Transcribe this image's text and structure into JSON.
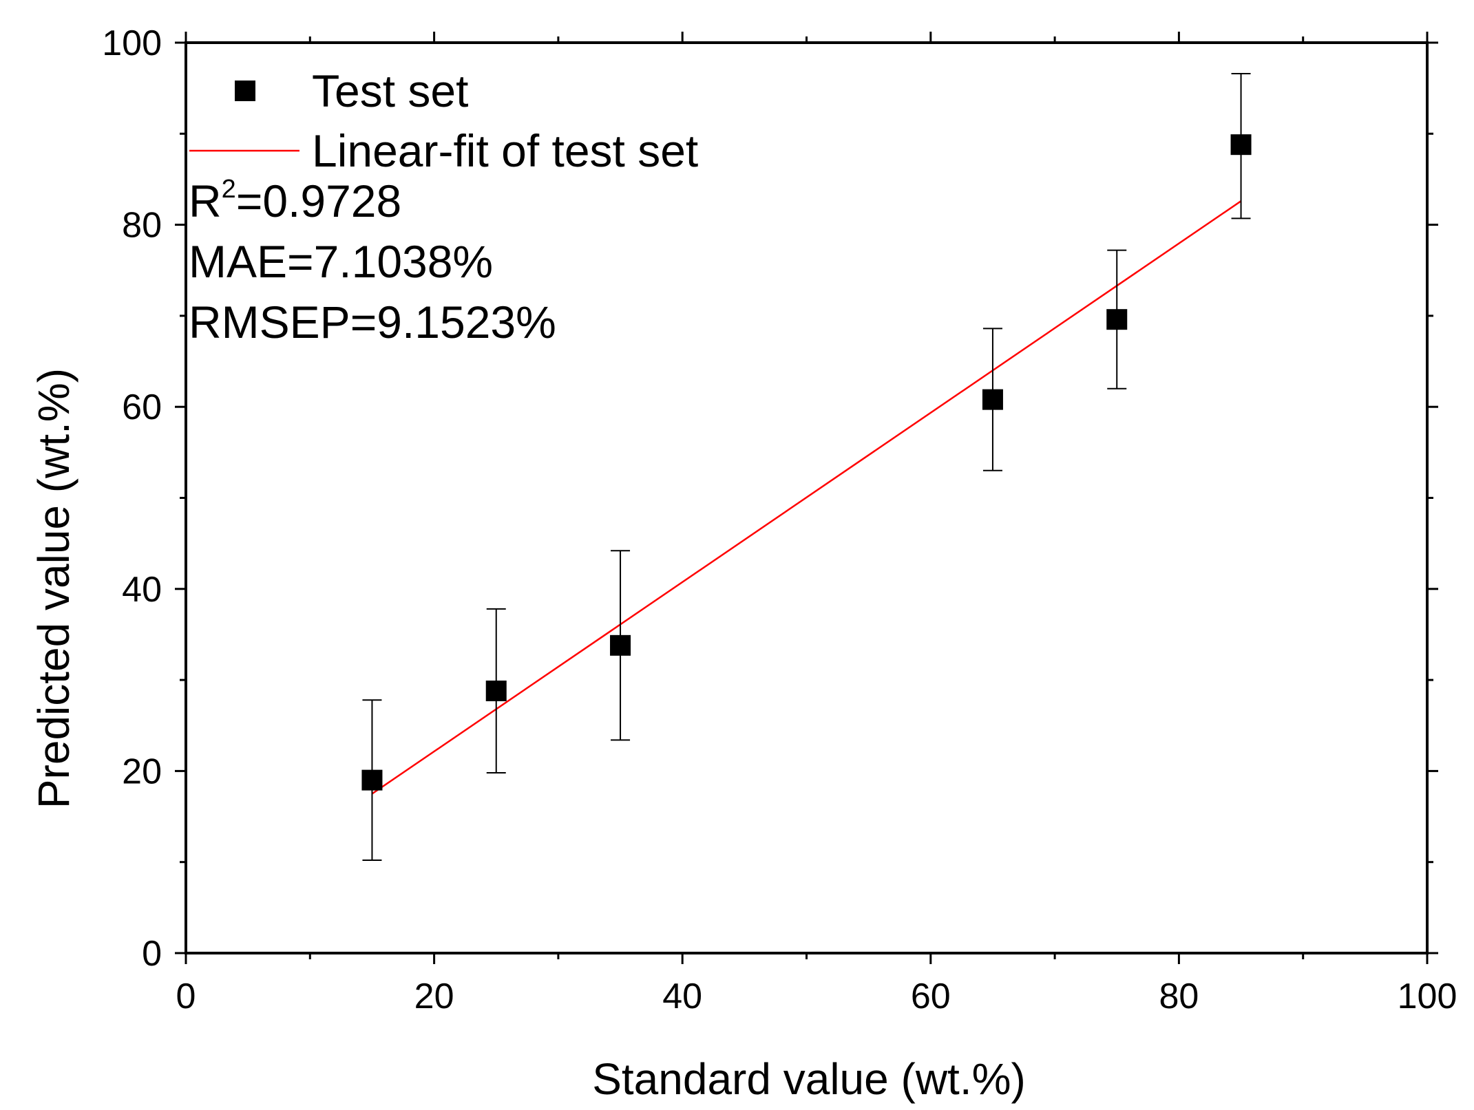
{
  "chart_data": {
    "type": "scatter",
    "xlabel": "Standard value (wt.%)",
    "ylabel": "Predicted value (wt.%)",
    "xlim": [
      0,
      100
    ],
    "ylim": [
      0,
      100
    ],
    "x_major_ticks": [
      0,
      20,
      40,
      60,
      80,
      100
    ],
    "y_major_ticks": [
      0,
      20,
      40,
      60,
      80,
      100
    ],
    "x_minor_ticks": [
      10,
      30,
      50,
      70,
      90
    ],
    "y_minor_ticks": [
      10,
      30,
      50,
      70,
      90
    ],
    "x_tick_labels": [
      "0",
      "20",
      "40",
      "60",
      "80",
      "100"
    ],
    "y_tick_labels": [
      "0",
      "20",
      "40",
      "60",
      "80",
      "100"
    ],
    "grid": false,
    "legend_position": "top-left",
    "series": [
      {
        "name": "Test set",
        "marker": "square",
        "color": "#000000",
        "points": [
          {
            "x": 15,
            "y": 19.0,
            "err_low": 10.2,
            "err_high": 27.8
          },
          {
            "x": 25,
            "y": 28.8,
            "err_low": 19.8,
            "err_high": 37.8
          },
          {
            "x": 35,
            "y": 33.8,
            "err_low": 23.4,
            "err_high": 44.2
          },
          {
            "x": 65,
            "y": 60.8,
            "err_low": 53.0,
            "err_high": 68.6
          },
          {
            "x": 75,
            "y": 69.6,
            "err_low": 62.0,
            "err_high": 77.2
          },
          {
            "x": 85,
            "y": 88.8,
            "err_low": 80.7,
            "err_high": 96.6
          }
        ]
      }
    ],
    "fit": {
      "name": "Linear-fit of test set",
      "color": "#ff0000",
      "x": [
        15,
        85
      ],
      "y": [
        17.5,
        82.6
      ]
    },
    "annotations": {
      "r2_base": "R",
      "r2_sup": "2",
      "r2_value": "=0.9728",
      "mae": "MAE=7.1038%",
      "rmsep": "RMSEP=9.1523%"
    }
  }
}
